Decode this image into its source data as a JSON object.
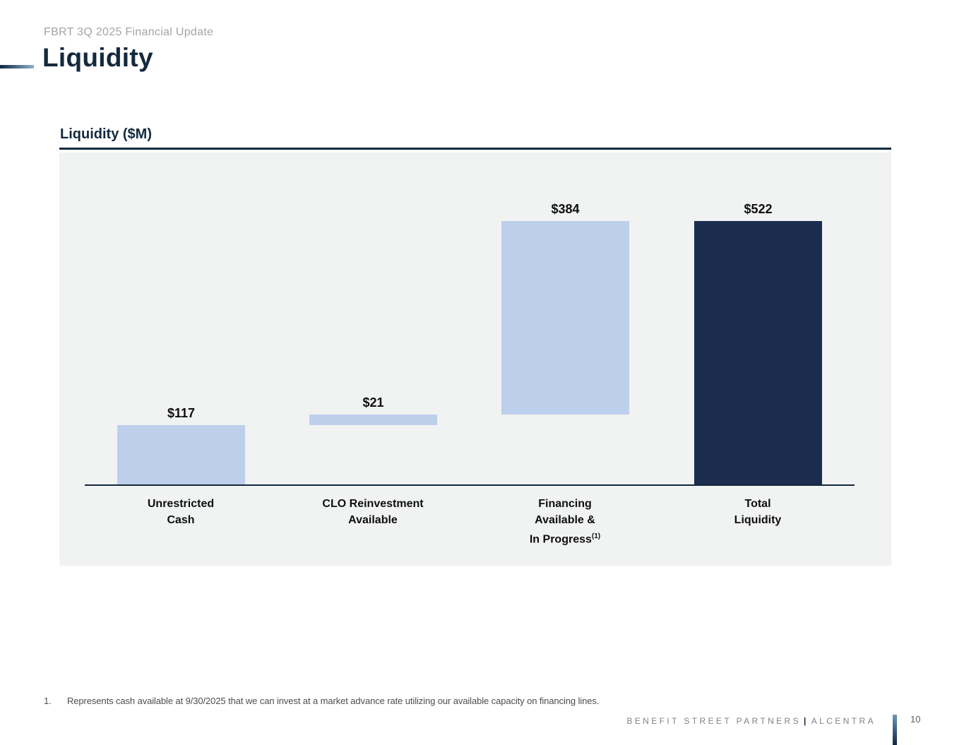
{
  "header": {
    "eyebrow": "FBRT 3Q 2025 Financial Update",
    "title": "Liquidity"
  },
  "chart": {
    "title": "Liquidity ($M)"
  },
  "chart_data": {
    "type": "bar",
    "subtype": "waterfall",
    "title": "Liquidity ($M)",
    "value_unit": "$M",
    "ylim": [
      0,
      522
    ],
    "grid": false,
    "legend": false,
    "background": "#f1f2f2",
    "axis_color": "#14293e",
    "bars": [
      {
        "category_lines": [
          "Unrestricted",
          "Cash"
        ],
        "value": 117,
        "base": 0,
        "label": "$117",
        "color": "#becfeb",
        "footnote_marker": ""
      },
      {
        "category_lines": [
          "CLO Reinvestment",
          "Available"
        ],
        "value": 21,
        "base": 117,
        "label": "$21",
        "color": "#becfeb",
        "footnote_marker": ""
      },
      {
        "category_lines": [
          "Financing",
          "Available &",
          "In Progress"
        ],
        "value": 384,
        "base": 138,
        "label": "$384",
        "color": "#becfeb",
        "footnote_marker": "(1)"
      },
      {
        "category_lines": [
          "Total",
          "Liquidity"
        ],
        "value": 522,
        "base": 0,
        "label": "$522",
        "color": "#1b2d4f",
        "footnote_marker": ""
      }
    ]
  },
  "footnotes": [
    {
      "number": "1.",
      "text": "Represents cash available at 9/30/2025 that we can invest at a market advance rate utilizing our available capacity on financing lines."
    }
  ],
  "footer": {
    "brand_left": "BENEFIT STREET PARTNERS",
    "separator": "|",
    "brand_right": "ALCENTRA",
    "page_number": "10"
  },
  "colors": {
    "accent_navy": "#14293e",
    "bar_light_blue": "#becfeb",
    "bar_dark_navy": "#1b2d4f",
    "chart_background": "#f1f2f2",
    "eyebrow_gray": "#a2a4a7",
    "footer_gray": "#808285"
  }
}
